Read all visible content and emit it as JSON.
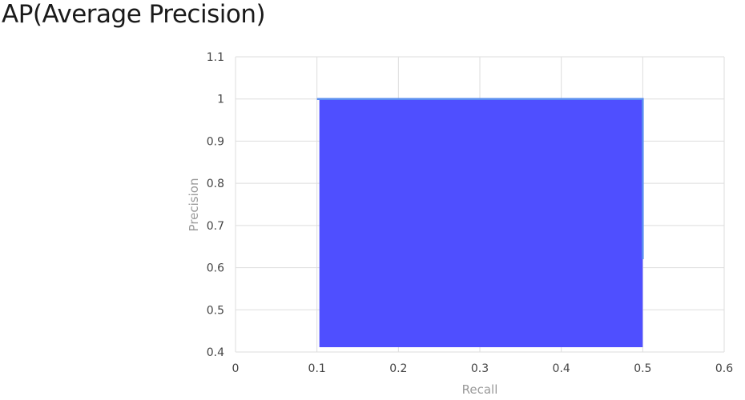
{
  "page": {
    "title": "AP(Average Precision)"
  },
  "chart_data": {
    "type": "area",
    "xlabel": "Recall",
    "ylabel": "Precision",
    "xlim": [
      0,
      0.6
    ],
    "ylim": [
      0.4,
      1.1
    ],
    "xticks": [
      0,
      0.1,
      0.2,
      0.3,
      0.4,
      0.5,
      0.6
    ],
    "yticks": [
      0.4,
      0.5,
      0.6,
      0.7,
      0.8,
      0.9,
      1,
      1.1
    ],
    "grid": true,
    "legend": "none",
    "series": [
      {
        "values": [
          {
            "x": 0.1,
            "y": 1
          },
          {
            "x": 0.5,
            "y": 1
          },
          {
            "x": 0.5,
            "y": 0.62
          }
        ]
      }
    ],
    "colors": {
      "fill": "#4f4fff",
      "line": "#5a8ef0",
      "grid": "#dddddd"
    }
  }
}
